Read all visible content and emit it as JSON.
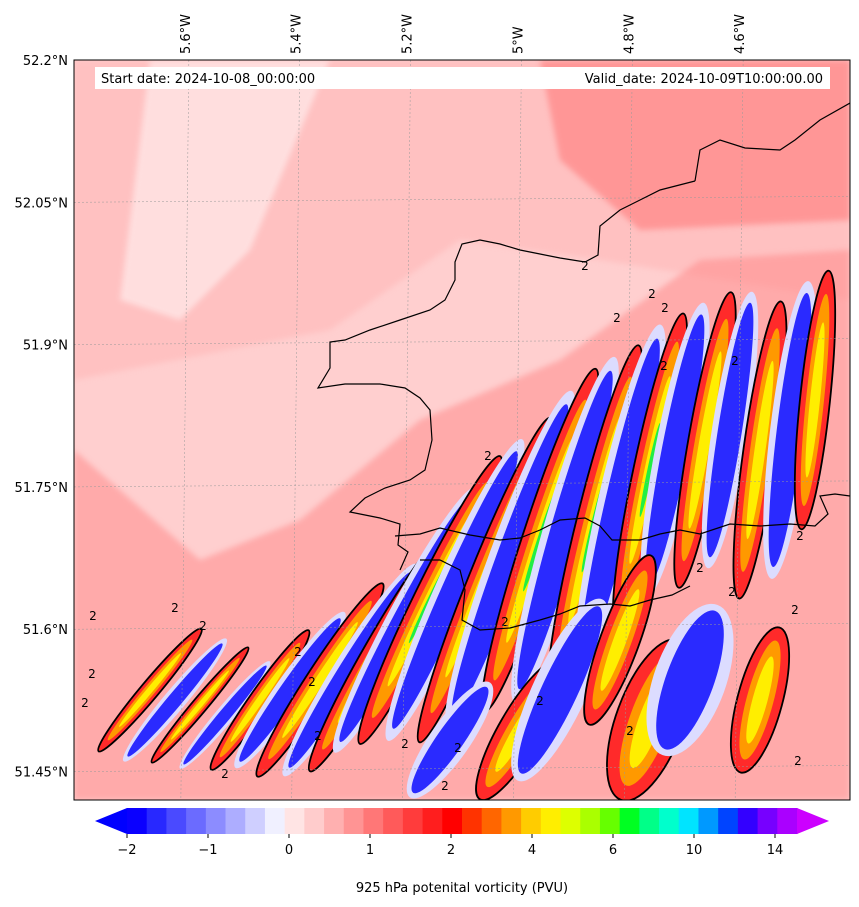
{
  "header": {
    "start_date": "Start date: 2024-10-08_00:00:00",
    "valid_date": "Valid_date: 2024-10-09T10:00:00.00"
  },
  "chart_data": {
    "type": "heatmap",
    "title": "",
    "map": {
      "lon_range": [
        -5.8,
        -4.4
      ],
      "lat_range": [
        51.42,
        52.2
      ],
      "x_ticks": [
        {
          "value": -5.6,
          "label": "5.6°W"
        },
        {
          "value": -5.4,
          "label": "5.4°W"
        },
        {
          "value": -5.2,
          "label": "5.2°W"
        },
        {
          "value": -5.0,
          "label": "5°W"
        },
        {
          "value": -4.8,
          "label": "4.8°W"
        },
        {
          "value": -4.6,
          "label": "4.6°W"
        }
      ],
      "y_ticks": [
        {
          "value": 52.2,
          "label": "52.2°N"
        },
        {
          "value": 52.05,
          "label": "52.05°N"
        },
        {
          "value": 51.9,
          "label": "51.9°N"
        },
        {
          "value": 51.75,
          "label": "51.75°N"
        },
        {
          "value": 51.6,
          "label": "51.6°N"
        },
        {
          "value": 51.45,
          "label": "51.45°N"
        }
      ],
      "contour_level": 2,
      "contour_label": "2"
    },
    "colorbar": {
      "label": "925 hPa potenital vorticity (PVU)",
      "extend": "both",
      "tick_labels": [
        "−2",
        "−1",
        "0",
        "1",
        "2",
        "4",
        "6",
        "10",
        "14"
      ],
      "colors": [
        "#0a00ff",
        "#2828ff",
        "#4a4aff",
        "#6b6bff",
        "#8c8cff",
        "#adadff",
        "#cfcfff",
        "#f0f0ff",
        "#ffe4e4",
        "#ffcccc",
        "#ffb0b0",
        "#ff9494",
        "#ff7777",
        "#ff5a5a",
        "#ff3c3c",
        "#ff1e1e",
        "#ff0000",
        "#ff3300",
        "#ff6600",
        "#ff9900",
        "#ffcc00",
        "#ffee00",
        "#ddff00",
        "#aaff00",
        "#66ff00",
        "#00ff22",
        "#00ff88",
        "#00ffcc",
        "#00e4ff",
        "#0099ff",
        "#0044ff",
        "#3300ff",
        "#7700ff",
        "#aa00ff"
      ],
      "under_color": "#0000ff",
      "over_color": "#cc00ff"
    }
  }
}
